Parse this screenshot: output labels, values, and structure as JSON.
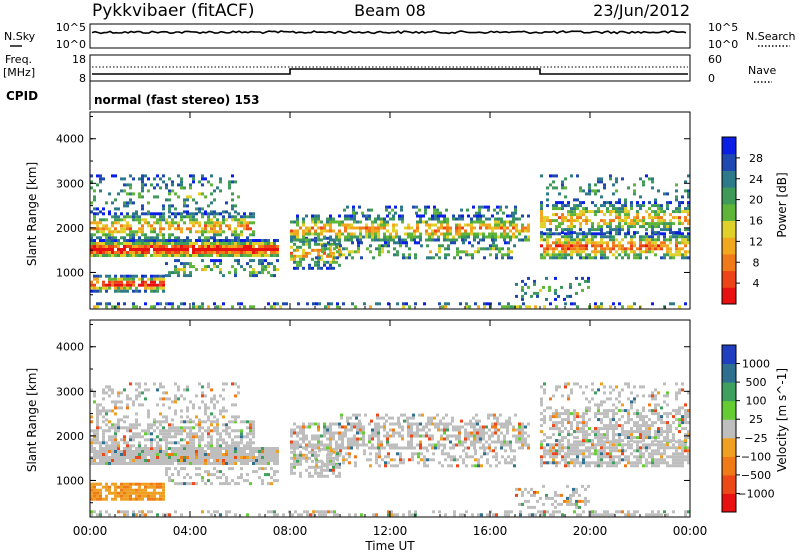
{
  "header": {
    "station": "Pykkvibaer (fitACF)",
    "beam": "Beam 08",
    "date": "23/Jun/2012"
  },
  "panels": {
    "nsky": {
      "left_label": "N.Sky",
      "left_ticks": [
        "10^5",
        "10^0"
      ],
      "right_ticks": [
        "10^5",
        "10^0"
      ],
      "right_label": "N.Search"
    },
    "freq": {
      "left_label_top": "Freq.",
      "left_label_bottom": "[MHz]",
      "left_ticks": [
        "18",
        "8"
      ],
      "right_ticks": [
        "60",
        "0"
      ],
      "right_label": "Nave"
    },
    "cpid": {
      "label": "CPID",
      "text": "normal (fast stereo) 153"
    }
  },
  "chart_data": [
    {
      "type": "heatmap",
      "name": "power",
      "ylabel": "Slant Range [km]",
      "yticks": [
        "4000",
        "3000",
        "2000",
        "1000"
      ],
      "ylim": [
        180,
        4600
      ],
      "colorbar_label": "Power [dB]",
      "colorbar_ticks": [
        "28",
        "24",
        "20",
        "16",
        "12",
        "8",
        "4"
      ],
      "colorbar_colors": [
        "#0b1ee6",
        "#1f49b0",
        "#2f7a8a",
        "#3f9a5a",
        "#5fb43a",
        "#e0d02a",
        "#f2a81e",
        "#f07a1a",
        "#ec4416",
        "#e81010"
      ]
    },
    {
      "type": "heatmap",
      "name": "velocity",
      "ylabel": "Slant Range [km]",
      "yticks": [
        "4000",
        "3000",
        "2000",
        "1000"
      ],
      "ylim": [
        180,
        4600
      ],
      "colorbar_label": "Velocity [m s^-1]",
      "colorbar_ticks": [
        "1000",
        "500",
        "100",
        "25",
        "−25",
        "−100",
        "−500",
        "−1000"
      ],
      "colorbar_colors": [
        "#1f3fc0",
        "#2f6f8f",
        "#3f9f5f",
        "#66cc33",
        "#bebebe",
        "#f0a020",
        "#f07a18",
        "#ec4818",
        "#e81010"
      ]
    }
  ],
  "time_axis": {
    "ticks": [
      "00:00",
      "04:00",
      "08:00",
      "12:00",
      "16:00",
      "20:00",
      "00:00"
    ],
    "xlabel": "Time UT"
  }
}
